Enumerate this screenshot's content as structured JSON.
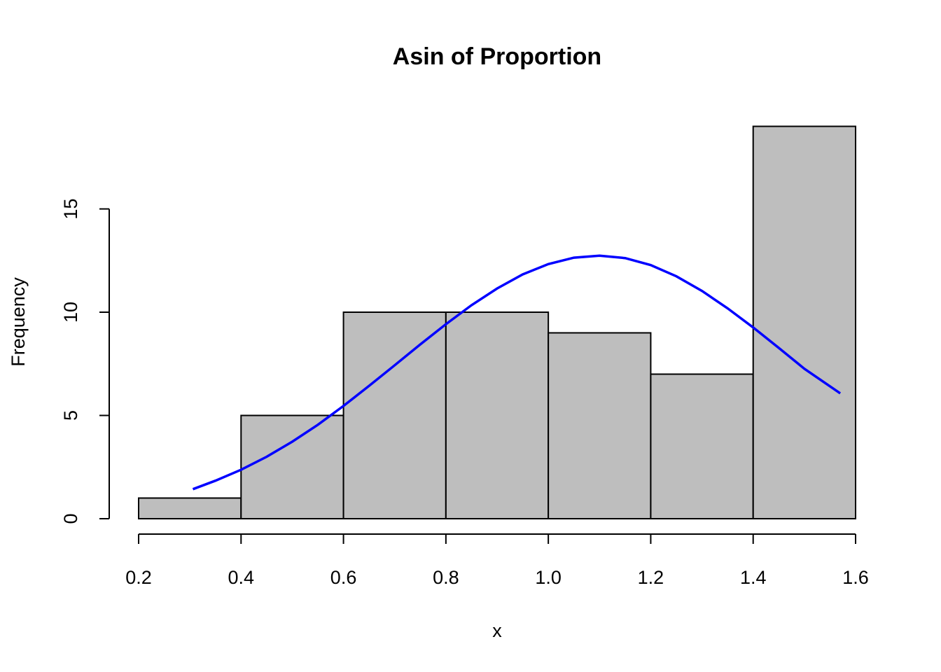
{
  "chart_data": {
    "type": "bar",
    "title": "Asin of Proportion",
    "xlabel": "x",
    "ylabel": "Frequency",
    "bins": [
      {
        "start": 0.2,
        "end": 0.4,
        "count": 1
      },
      {
        "start": 0.4,
        "end": 0.6,
        "count": 5
      },
      {
        "start": 0.6,
        "end": 0.8,
        "count": 10
      },
      {
        "start": 0.8,
        "end": 1.0,
        "count": 10
      },
      {
        "start": 1.0,
        "end": 1.2,
        "count": 9
      },
      {
        "start": 1.2,
        "end": 1.4,
        "count": 7
      },
      {
        "start": 1.4,
        "end": 1.6,
        "count": 19
      }
    ],
    "x_ticks": [
      "0.2",
      "0.4",
      "0.6",
      "0.8",
      "1.0",
      "1.2",
      "1.4",
      "1.6"
    ],
    "y_ticks": [
      "0",
      "5",
      "10",
      "15"
    ],
    "xlim": [
      0.2,
      1.6
    ],
    "ylim": [
      0,
      19
    ],
    "grid": false,
    "bar_color": "#bebebe",
    "overlay_curve": {
      "type": "line",
      "color": "#0000ff",
      "x": [
        0.306,
        0.35,
        0.4,
        0.45,
        0.5,
        0.55,
        0.6,
        0.65,
        0.7,
        0.75,
        0.8,
        0.85,
        0.9,
        0.95,
        1.0,
        1.05,
        1.1,
        1.15,
        1.2,
        1.25,
        1.3,
        1.35,
        1.4,
        1.45,
        1.5,
        1.57
      ],
      "y": [
        1.43,
        1.84,
        2.37,
        3.0,
        3.73,
        4.55,
        5.46,
        6.43,
        7.43,
        8.44,
        9.42,
        10.34,
        11.15,
        11.83,
        12.33,
        12.64,
        12.74,
        12.62,
        12.28,
        11.74,
        11.03,
        10.19,
        9.26,
        8.27,
        7.26,
        6.07
      ]
    }
  }
}
